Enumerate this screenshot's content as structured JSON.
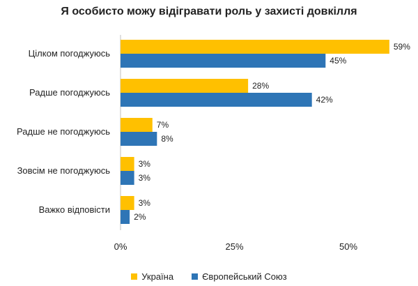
{
  "chart_data": {
    "type": "bar",
    "orientation": "horizontal",
    "title": "Я особисто можу відігравати роль у захисті довкілля",
    "categories": [
      "Цілком погоджуюсь",
      "Радше погоджуюсь",
      "Радше не погоджуюсь",
      "Зовсім не погоджуюсь",
      "Важко відповісти"
    ],
    "series": [
      {
        "name": "Україна",
        "values": [
          59,
          28,
          7,
          3,
          3
        ],
        "labels": [
          "59%",
          "28%",
          "7%",
          "3%",
          "3%"
        ],
        "color": "#FFC000"
      },
      {
        "name": "Європейський Союз",
        "values": [
          45,
          42,
          8,
          3,
          2
        ],
        "labels": [
          "45%",
          "42%",
          "8%",
          "3%",
          "2%"
        ],
        "color": "#2E75B6"
      }
    ],
    "x_ticks": [
      0,
      25,
      50
    ],
    "x_tick_labels": [
      "0%",
      "25%",
      "50%"
    ],
    "xlim": [
      0,
      60
    ],
    "grid": false,
    "legend_position": "bottom"
  }
}
